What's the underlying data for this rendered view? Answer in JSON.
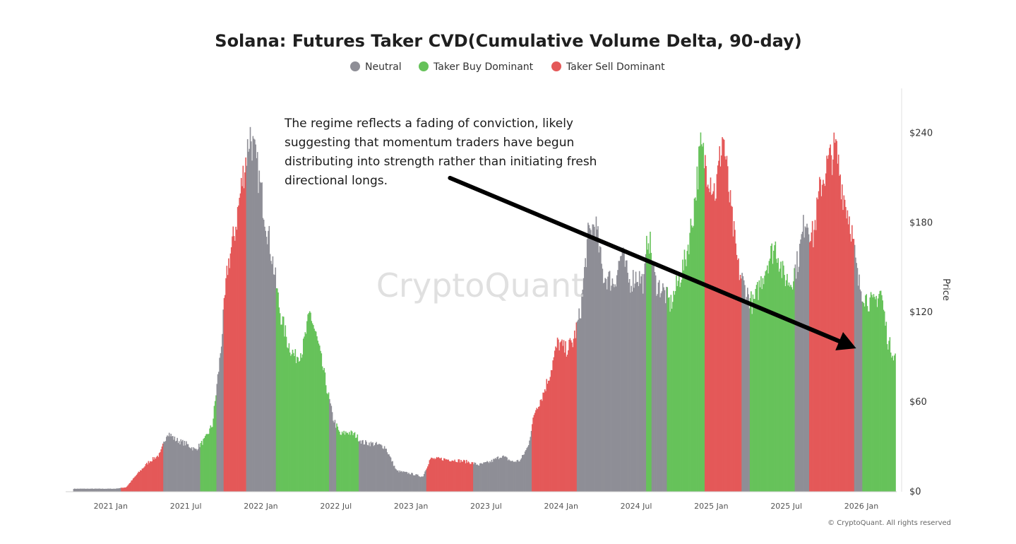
{
  "chart_data": {
    "type": "bar",
    "title": "Solana: Futures Taker CVD(Cumulative Volume Delta, 90-day)",
    "legend": [
      {
        "label": "Neutral",
        "color": "#8e8e96"
      },
      {
        "label": "Taker Buy Dominant",
        "color": "#66c25a"
      },
      {
        "label": "Taker Sell Dominant",
        "color": "#e45858"
      }
    ],
    "ylabel": "Price",
    "ylim": [
      0,
      270
    ],
    "yticks": [
      {
        "value": 0,
        "label": "$0"
      },
      {
        "value": 60,
        "label": "$60"
      },
      {
        "value": 120,
        "label": "$120"
      },
      {
        "value": 180,
        "label": "$180"
      },
      {
        "value": 240,
        "label": "$240"
      }
    ],
    "xlim": [
      -0.1,
      10.97
    ],
    "xticks": [
      {
        "pos": 0.5,
        "label": "2021 Jan"
      },
      {
        "pos": 1.5,
        "label": "2021 Jul"
      },
      {
        "pos": 2.5,
        "label": "2022 Jan"
      },
      {
        "pos": 3.5,
        "label": "2022 Jul"
      },
      {
        "pos": 4.5,
        "label": "2023 Jan"
      },
      {
        "pos": 5.5,
        "label": "2023 Jul"
      },
      {
        "pos": 6.5,
        "label": "2024 Jan"
      },
      {
        "pos": 7.5,
        "label": "2024 Jul"
      },
      {
        "pos": 8.5,
        "label": "2025 Jan"
      },
      {
        "pos": 9.5,
        "label": "2025 Jul"
      },
      {
        "pos": 10.5,
        "label": "2026 Jan"
      }
    ],
    "price_series": [
      [
        0.0,
        2,
        "neutral"
      ],
      [
        0.3,
        2,
        "neutral"
      ],
      [
        0.55,
        2,
        "neutral"
      ],
      [
        0.7,
        3,
        "sell"
      ],
      [
        0.85,
        12,
        "sell"
      ],
      [
        1.0,
        20,
        "sell"
      ],
      [
        1.15,
        25,
        "sell"
      ],
      [
        1.25,
        40,
        "neutral"
      ],
      [
        1.35,
        35,
        "neutral"
      ],
      [
        1.5,
        32,
        "neutral"
      ],
      [
        1.62,
        28,
        "neutral"
      ],
      [
        1.75,
        35,
        "buy"
      ],
      [
        1.85,
        45,
        "buy"
      ],
      [
        1.95,
        90,
        "neutral"
      ],
      [
        2.05,
        150,
        "sell"
      ],
      [
        2.15,
        175,
        "sell"
      ],
      [
        2.25,
        210,
        "sell"
      ],
      [
        2.35,
        240,
        "neutral"
      ],
      [
        2.45,
        215,
        "neutral"
      ],
      [
        2.55,
        185,
        "neutral"
      ],
      [
        2.65,
        155,
        "neutral"
      ],
      [
        2.75,
        120,
        "buy"
      ],
      [
        2.85,
        100,
        "buy"
      ],
      [
        2.95,
        90,
        "buy"
      ],
      [
        3.05,
        95,
        "buy"
      ],
      [
        3.15,
        120,
        "buy"
      ],
      [
        3.25,
        100,
        "buy"
      ],
      [
        3.35,
        75,
        "buy"
      ],
      [
        3.45,
        50,
        "neutral"
      ],
      [
        3.55,
        38,
        "buy"
      ],
      [
        3.65,
        40,
        "buy"
      ],
      [
        3.75,
        38,
        "buy"
      ],
      [
        3.85,
        33,
        "neutral"
      ],
      [
        4.0,
        32,
        "neutral"
      ],
      [
        4.15,
        30,
        "neutral"
      ],
      [
        4.3,
        14,
        "neutral"
      ],
      [
        4.5,
        12,
        "neutral"
      ],
      [
        4.65,
        10,
        "neutral"
      ],
      [
        4.75,
        22,
        "sell"
      ],
      [
        4.9,
        22,
        "sell"
      ],
      [
        5.1,
        21,
        "sell"
      ],
      [
        5.25,
        20,
        "sell"
      ],
      [
        5.4,
        18,
        "neutral"
      ],
      [
        5.55,
        20,
        "neutral"
      ],
      [
        5.7,
        24,
        "neutral"
      ],
      [
        5.85,
        20,
        "neutral"
      ],
      [
        5.95,
        21,
        "neutral"
      ],
      [
        6.05,
        30,
        "neutral"
      ],
      [
        6.15,
        55,
        "sell"
      ],
      [
        6.25,
        65,
        "sell"
      ],
      [
        6.35,
        80,
        "sell"
      ],
      [
        6.45,
        100,
        "sell"
      ],
      [
        6.55,
        95,
        "sell"
      ],
      [
        6.65,
        100,
        "sell"
      ],
      [
        6.75,
        120,
        "neutral"
      ],
      [
        6.85,
        170,
        "neutral"
      ],
      [
        6.95,
        180,
        "neutral"
      ],
      [
        7.05,
        145,
        "neutral"
      ],
      [
        7.2,
        140,
        "neutral"
      ],
      [
        7.3,
        160,
        "neutral"
      ],
      [
        7.4,
        140,
        "neutral"
      ],
      [
        7.5,
        145,
        "neutral"
      ],
      [
        7.6,
        140,
        "neutral"
      ],
      [
        7.65,
        175,
        "buy"
      ],
      [
        7.75,
        140,
        "neutral"
      ],
      [
        7.85,
        135,
        "neutral"
      ],
      [
        7.95,
        125,
        "buy"
      ],
      [
        8.05,
        140,
        "buy"
      ],
      [
        8.15,
        155,
        "buy"
      ],
      [
        8.25,
        185,
        "buy"
      ],
      [
        8.35,
        230,
        "buy"
      ],
      [
        8.45,
        215,
        "sell"
      ],
      [
        8.55,
        200,
        "sell"
      ],
      [
        8.65,
        240,
        "sell"
      ],
      [
        8.75,
        190,
        "sell"
      ],
      [
        8.85,
        150,
        "sell"
      ],
      [
        8.95,
        135,
        "neutral"
      ],
      [
        9.05,
        125,
        "buy"
      ],
      [
        9.15,
        140,
        "buy"
      ],
      [
        9.25,
        155,
        "buy"
      ],
      [
        9.35,
        165,
        "buy"
      ],
      [
        9.45,
        145,
        "buy"
      ],
      [
        9.55,
        140,
        "buy"
      ],
      [
        9.65,
        155,
        "neutral"
      ],
      [
        9.75,
        185,
        "neutral"
      ],
      [
        9.85,
        170,
        "sell"
      ],
      [
        9.95,
        205,
        "sell"
      ],
      [
        10.05,
        220,
        "sell"
      ],
      [
        10.15,
        230,
        "sell"
      ],
      [
        10.25,
        200,
        "sell"
      ],
      [
        10.35,
        180,
        "sell"
      ],
      [
        10.45,
        140,
        "neutral"
      ],
      [
        10.55,
        130,
        "buy"
      ],
      [
        10.65,
        125,
        "buy"
      ],
      [
        10.75,
        135,
        "buy"
      ],
      [
        10.85,
        100,
        "buy"
      ],
      [
        10.95,
        90,
        "buy"
      ]
    ],
    "annotations": [
      {
        "text": [
          "The regime reflects a fading of conviction, likely",
          "suggesting that momentum traders have begun",
          "distributing into strength rather than initiating fresh",
          "directional longs."
        ],
        "arrow_from": [
          5.02,
          210
        ],
        "arrow_to": [
          10.43,
          96
        ]
      }
    ],
    "watermark": "CryptoQuant",
    "copyright": "© CryptoQuant. All rights reserved"
  }
}
